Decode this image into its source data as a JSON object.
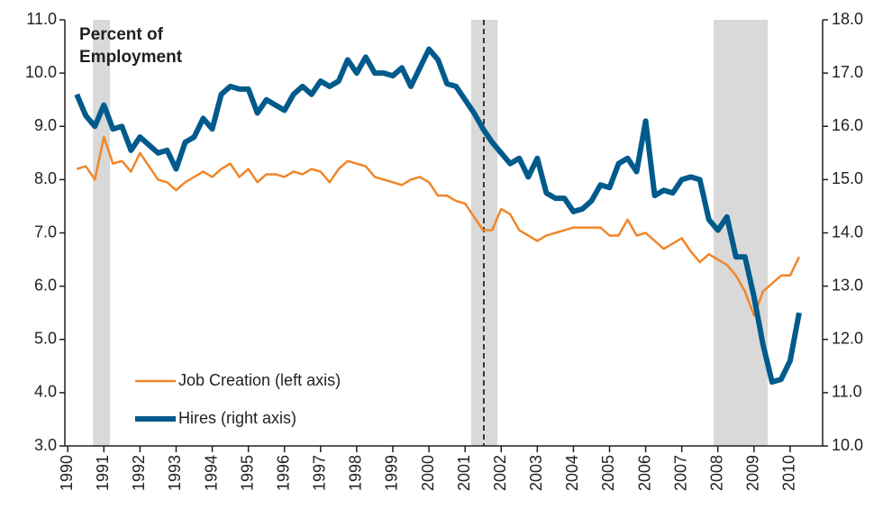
{
  "chart_data": {
    "type": "line",
    "annotation": "Percent of Employment",
    "x": [
      1990.25,
      1990.5,
      1990.75,
      1991,
      1991.25,
      1991.5,
      1991.75,
      1992,
      1992.25,
      1992.5,
      1992.75,
      1993,
      1993.25,
      1993.5,
      1993.75,
      1994,
      1994.25,
      1994.5,
      1994.75,
      1995,
      1995.25,
      1995.5,
      1995.75,
      1996,
      1996.25,
      1996.5,
      1996.75,
      1997,
      1997.25,
      1997.5,
      1997.75,
      1998,
      1998.25,
      1998.5,
      1998.75,
      1999,
      1999.25,
      1999.5,
      1999.75,
      2000,
      2000.25,
      2000.5,
      2000.75,
      2001,
      2001.25,
      2001.5,
      2001.75,
      2002,
      2002.25,
      2002.5,
      2002.75,
      2003,
      2003.25,
      2003.5,
      2003.75,
      2004,
      2004.25,
      2004.5,
      2004.75,
      2005,
      2005.25,
      2005.5,
      2005.75,
      2006,
      2006.25,
      2006.5,
      2006.75,
      2007,
      2007.25,
      2007.5,
      2007.75,
      2008,
      2008.25,
      2008.5,
      2008.75,
      2009,
      2009.25,
      2009.5,
      2009.75,
      2010,
      2010.25
    ],
    "series": [
      {
        "name": "Job Creation (left axis)",
        "color": "#f0862a",
        "width": 2.5,
        "values": [
          8.2,
          8.25,
          8.0,
          8.8,
          8.3,
          8.35,
          8.15,
          8.5,
          8.25,
          8.0,
          7.95,
          7.8,
          7.95,
          8.05,
          8.15,
          8.05,
          8.2,
          8.3,
          8.05,
          8.2,
          7.95,
          8.1,
          8.1,
          8.05,
          8.15,
          8.1,
          8.2,
          8.15,
          7.95,
          8.2,
          8.35,
          8.3,
          8.25,
          8.05,
          8.0,
          7.95,
          7.9,
          8.0,
          8.05,
          7.95,
          7.7,
          7.7,
          7.6,
          7.55,
          7.3,
          7.05,
          7.05,
          7.45,
          7.35,
          7.05,
          6.95,
          6.85,
          6.95,
          7.0,
          7.05,
          7.1,
          7.1,
          7.1,
          7.1,
          6.95,
          6.95,
          7.25,
          6.95,
          7.0,
          6.85,
          6.7,
          6.8,
          6.9,
          6.65,
          6.45,
          6.6,
          6.5,
          6.4,
          6.2,
          5.9,
          5.45,
          5.9,
          6.05,
          6.2,
          6.2,
          6.55
        ]
      },
      {
        "name": "Hires (right axis)",
        "color": "#005a8c",
        "width": 6,
        "axis": "y2",
        "values": [
          16.6,
          16.2,
          16.0,
          16.4,
          15.95,
          16.0,
          15.55,
          15.8,
          15.65,
          15.5,
          15.55,
          15.2,
          15.7,
          15.8,
          16.15,
          15.95,
          16.6,
          16.75,
          16.7,
          16.7,
          16.25,
          16.5,
          16.4,
          16.3,
          16.6,
          16.75,
          16.6,
          16.85,
          16.75,
          16.85,
          17.25,
          17.0,
          17.3,
          17.0,
          17.0,
          16.95,
          17.1,
          16.75,
          17.1,
          17.45,
          17.25,
          16.8,
          16.75,
          16.5,
          16.25,
          15.95,
          15.7,
          15.5,
          15.3,
          15.4,
          15.05,
          15.4,
          14.75,
          14.65,
          14.65,
          14.4,
          14.45,
          14.6,
          14.9,
          14.85,
          15.3,
          15.4,
          15.15,
          16.1,
          14.7,
          14.8,
          14.75,
          15.0,
          15.05,
          15.0,
          14.25,
          14.05,
          14.3,
          13.55,
          13.55,
          12.8,
          11.9,
          11.2,
          11.25,
          11.6,
          12.5
        ]
      }
    ],
    "xlim": [
      1989.92,
      2010.9
    ],
    "xticks": [
      1990,
      1991,
      1992,
      1993,
      1994,
      1995,
      1996,
      1997,
      1998,
      1999,
      2000,
      2001,
      2002,
      2003,
      2004,
      2005,
      2006,
      2007,
      2008,
      2009,
      2010
    ],
    "ylim": [
      3,
      11
    ],
    "yticks": [
      {
        "value": 3,
        "label": "3.0"
      },
      {
        "value": 4,
        "label": "4.0"
      },
      {
        "value": 5,
        "label": "5.0"
      },
      {
        "value": 6,
        "label": "6.0"
      },
      {
        "value": 7,
        "label": "7.0"
      },
      {
        "value": 8,
        "label": "8.0"
      },
      {
        "value": 9,
        "label": "9.0"
      },
      {
        "value": 10,
        "label": "10.0"
      },
      {
        "value": 11,
        "label": "11.0"
      }
    ],
    "y2lim": [
      10,
      18
    ],
    "y2ticks": [
      {
        "value": 10,
        "label": "10.0"
      },
      {
        "value": 11,
        "label": "11.0"
      },
      {
        "value": 12,
        "label": "12.0"
      },
      {
        "value": 13,
        "label": "13.0"
      },
      {
        "value": 14,
        "label": "14.0"
      },
      {
        "value": 15,
        "label": "15.0"
      },
      {
        "value": 16,
        "label": "16.0"
      },
      {
        "value": 17,
        "label": "17.0"
      },
      {
        "value": 18,
        "label": "18.0"
      }
    ],
    "shaded_periods": [
      [
        1990.7,
        1991.17
      ],
      [
        2001.17,
        2001.9
      ],
      [
        2007.88,
        2009.38
      ]
    ],
    "shade_color": "#d9d9d9",
    "dashed_line_x": 2001.52,
    "legend": "lower left"
  }
}
